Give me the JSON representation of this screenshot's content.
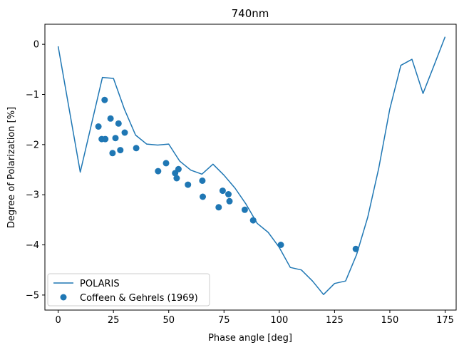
{
  "chart_data": {
    "type": "line+scatter",
    "title": "740nm",
    "xlabel": "Phase angle [deg]",
    "ylabel": "Degree of Polarization [%]",
    "xlim": [
      -6,
      180
    ],
    "ylim": [
      -5.3,
      0.4
    ],
    "xticks": [
      0,
      25,
      50,
      75,
      100,
      125,
      150,
      175
    ],
    "yticks": [
      0,
      -1,
      -2,
      -3,
      -4,
      -5
    ],
    "grid": false,
    "legend_position": "lower-left",
    "series": [
      {
        "name": "POLARIS",
        "kind": "line",
        "color": "#1f77b4",
        "points": [
          [
            0,
            -0.04
          ],
          [
            10,
            -2.55
          ],
          [
            20,
            -0.66
          ],
          [
            25,
            -0.68
          ],
          [
            30,
            -1.3
          ],
          [
            35,
            -1.81
          ],
          [
            40,
            -1.99
          ],
          [
            45,
            -2.01
          ],
          [
            50,
            -1.99
          ],
          [
            55,
            -2.33
          ],
          [
            60,
            -2.51
          ],
          [
            65,
            -2.59
          ],
          [
            70,
            -2.39
          ],
          [
            75,
            -2.61
          ],
          [
            80,
            -2.87
          ],
          [
            85,
            -3.19
          ],
          [
            90,
            -3.57
          ],
          [
            95,
            -3.75
          ],
          [
            100,
            -4.05
          ],
          [
            105,
            -4.45
          ],
          [
            110,
            -4.5
          ],
          [
            115,
            -4.72
          ],
          [
            120,
            -4.99
          ],
          [
            125,
            -4.77
          ],
          [
            130,
            -4.72
          ],
          [
            135,
            -4.19
          ],
          [
            140,
            -3.45
          ],
          [
            145,
            -2.47
          ],
          [
            150,
            -1.29
          ],
          [
            155,
            -0.42
          ],
          [
            160,
            -0.3
          ],
          [
            165,
            -0.98
          ],
          [
            170,
            -0.42
          ],
          [
            175,
            0.15
          ]
        ]
      },
      {
        "name": "Coffeen & Gehrels (1969)",
        "kind": "scatter",
        "color": "#1f77b4",
        "points": [
          [
            18.2,
            -1.64
          ],
          [
            19.7,
            -1.89
          ],
          [
            21.0,
            -1.11
          ],
          [
            21.3,
            -1.89
          ],
          [
            23.7,
            -1.48
          ],
          [
            24.6,
            -2.17
          ],
          [
            25.9,
            -1.87
          ],
          [
            27.3,
            -1.58
          ],
          [
            28.1,
            -2.11
          ],
          [
            30.1,
            -1.76
          ],
          [
            35.3,
            -2.07
          ],
          [
            45.2,
            -2.53
          ],
          [
            48.8,
            -2.37
          ],
          [
            52.9,
            -2.57
          ],
          [
            53.6,
            -2.67
          ],
          [
            54.4,
            -2.49
          ],
          [
            58.7,
            -2.8
          ],
          [
            65.2,
            -2.72
          ],
          [
            65.4,
            -3.04
          ],
          [
            72.6,
            -3.25
          ],
          [
            74.4,
            -2.92
          ],
          [
            77.0,
            -2.99
          ],
          [
            77.5,
            -3.13
          ],
          [
            84.4,
            -3.3
          ],
          [
            88.2,
            -3.51
          ],
          [
            100.7,
            -4.0
          ],
          [
            134.6,
            -4.08
          ]
        ]
      }
    ]
  }
}
